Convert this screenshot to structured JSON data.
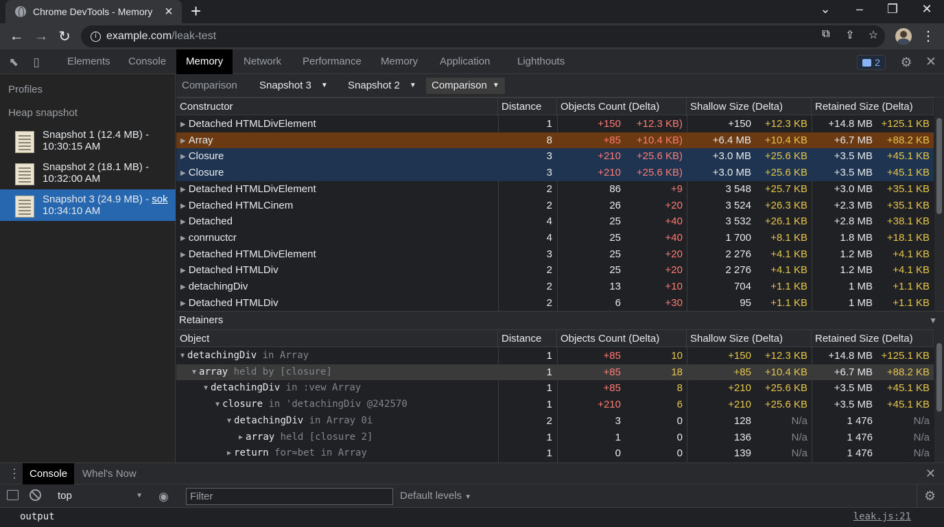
{
  "browser": {
    "tab_title": "Chrome DevTools - Memory",
    "url_host": "example.com",
    "url_path": "/leak-test"
  },
  "devtools": {
    "tabs": [
      "Elements",
      "Console",
      "Memory",
      "Network",
      "Performance",
      "Memory",
      "Application",
      "Lighthouts"
    ],
    "active_tab_index": 2,
    "messages_count": "2"
  },
  "sidebar": {
    "profiles_label": "Profiles",
    "section_label": "Heap snapshot",
    "snapshots": [
      {
        "line1": "Snapshot 1 (12.4 MB) -",
        "line2": "10:30:15 AM",
        "link": ""
      },
      {
        "line1": "Snapshot 2 (18.1 MB) -",
        "line2": "10:32:00 AM",
        "link": ""
      },
      {
        "line1": "Snapshot 3 (24.9 MB) - ",
        "line2": "10:34:10 AM",
        "link": "sok"
      }
    ],
    "selected_index": 2
  },
  "main_toolbar": {
    "view_label": "Comparison",
    "snapshot_a": "Snapshot 3",
    "snapshot_b": "Snapshot 2",
    "mode": "Comparison"
  },
  "constructors_table": {
    "headers": [
      "Constructor",
      "Distance",
      "Objects Count (Delta)",
      "Shallow Size (Delta)",
      "Retained Size (Delta)"
    ],
    "rows": [
      {
        "name": "Detached HTMLDivElement",
        "distance": "1",
        "count": "+150",
        "count_delta": "+12.3 KB)",
        "shallow": "+150",
        "shallow_delta": "+12.3 KB",
        "retained": "+14.8 MB",
        "retained_delta": "+125.1 KB",
        "style": "",
        "count_red": true
      },
      {
        "name": "Array",
        "distance": "8",
        "count": "+85",
        "count_delta": "+10.4 KB)",
        "shallow": "+6.4 MB",
        "shallow_delta": "+10.4 KB",
        "retained": "+6.7 MB",
        "retained_delta": "+88.2 KB",
        "style": "orange",
        "count_red": true
      },
      {
        "name": "Closure",
        "distance": "3",
        "count": "+210",
        "count_delta": "+25.6 KB)",
        "shallow": "+3.0 MB",
        "shallow_delta": "+25.6 KB",
        "retained": "+3.5 MB",
        "retained_delta": "+45.1 KB",
        "style": "blue",
        "count_red": true
      },
      {
        "name": "Closure",
        "distance": "3",
        "count": "+210",
        "count_delta": "+25.6 KB)",
        "shallow": "+3.0 MB",
        "shallow_delta": "+25.6 KB",
        "retained": "+3.5 MB",
        "retained_delta": "+45.1 KB",
        "style": "blue",
        "count_red": true
      },
      {
        "name": "Detached HTMLDivElement",
        "distance": "2",
        "count": "86",
        "count_delta": "+9",
        "shallow": "3 548",
        "shallow_delta": "+25.7 KB",
        "retained": "+3.0 MB",
        "retained_delta": "+35.1 KB",
        "style": "",
        "count_red": false
      },
      {
        "name": "Detached HTMLCinem",
        "distance": "2",
        "count": "26",
        "count_delta": "+20",
        "shallow": "3 524",
        "shallow_delta": "+26.3 KB",
        "retained": "+2.3 MB",
        "retained_delta": "+35.1 KB",
        "style": "",
        "count_red": false
      },
      {
        "name": "Detached",
        "distance": "4",
        "count": "25",
        "count_delta": "+40",
        "shallow": "3 532",
        "shallow_delta": "+26.1 KB",
        "retained": "+2.8 MB",
        "retained_delta": "+38.1 KB",
        "style": "",
        "count_red": false
      },
      {
        "name": "conrnuctcr",
        "distance": "4",
        "count": "25",
        "count_delta": "+40",
        "shallow": "1 700",
        "shallow_delta": "+8.1 KB",
        "retained": "1.8 MB",
        "retained_delta": "+18.1 KB",
        "style": "",
        "count_red": false
      },
      {
        "name": "Detached HTMLDivElement",
        "distance": "3",
        "count": "25",
        "count_delta": "+20",
        "shallow": "2 276",
        "shallow_delta": "+4.1 KB",
        "retained": "1.2 MB",
        "retained_delta": "+4.1 KB",
        "style": "",
        "count_red": false
      },
      {
        "name": "Detached HTMLDiv",
        "distance": "2",
        "count": "25",
        "count_delta": "+20",
        "shallow": "2 276",
        "shallow_delta": "+4.1 KB",
        "retained": "1.2 MB",
        "retained_delta": "+4.1 KB",
        "style": "",
        "count_red": false
      },
      {
        "name": "detachingDiv",
        "distance": "2",
        "count": "13",
        "count_delta": "+10",
        "shallow": "704",
        "shallow_delta": "+1.1 KB",
        "retained": "1 MB",
        "retained_delta": "+1.1 KB",
        "style": "",
        "count_red": false
      },
      {
        "name": "Detached HTMLDiv",
        "distance": "2",
        "count": "6",
        "count_delta": "+30",
        "shallow": "95",
        "shallow_delta": "+1.1 KB",
        "retained": "1 MB",
        "retained_delta": "+1.1 KB",
        "style": "",
        "count_red": false
      }
    ]
  },
  "retainers": {
    "title": "Retainers",
    "headers": [
      "Object",
      "Distance",
      "Objects Count (Delta)",
      "Shallow Size (Delta)",
      "Retained Size (Delta)"
    ],
    "rows": [
      {
        "depth": 0,
        "expanded": true,
        "name": "detachingDiv",
        "suffix": " in Array",
        "distance": "1",
        "count": "+85",
        "count_delta": "10",
        "shallow": "+150",
        "shallow_delta": "+12.3 KB",
        "retained": "+14.8 MB",
        "retained_delta": "+125.1 KB",
        "style": "",
        "na": false
      },
      {
        "depth": 1,
        "expanded": true,
        "name": "array",
        "suffix": " held by [closure]",
        "distance": "1",
        "count": "+85",
        "count_delta": "18",
        "shallow": "+85",
        "shallow_delta": "+10.4 KB",
        "retained": "+6.7 MB",
        "retained_delta": "+88.2 KB",
        "style": "grey",
        "na": false
      },
      {
        "depth": 2,
        "expanded": true,
        "name": "detachingDiv",
        "suffix": " in :vew Array",
        "distance": "1",
        "count": "+85",
        "count_delta": "8",
        "shallow": "+210",
        "shallow_delta": "+25.6 KB",
        "retained": "+3.5 MB",
        "retained_delta": "+45.1 KB",
        "style": "",
        "na": false
      },
      {
        "depth": 3,
        "expanded": true,
        "name": "closure",
        "suffix": " in 'detachingDiv @242570",
        "distance": "1",
        "count": "+210",
        "count_delta": "6",
        "shallow": "+210",
        "shallow_delta": "+25.6 KB",
        "retained": "+3.5 MB",
        "retained_delta": "+45.1 KB",
        "style": "",
        "na": false
      },
      {
        "depth": 4,
        "expanded": true,
        "name": "detachingDiv",
        "suffix": " in Array 0i",
        "distance": "2",
        "count": "3",
        "count_delta": "0",
        "shallow": "128",
        "shallow_delta": "N/a",
        "retained": "1 476",
        "retained_delta": "N/a",
        "style": "",
        "na": true
      },
      {
        "depth": 5,
        "expanded": false,
        "name": "array",
        "suffix": " held [closure 2]",
        "distance": "1",
        "count": "1",
        "count_delta": "0",
        "shallow": "136",
        "shallow_delta": "N/a",
        "retained": "1 476",
        "retained_delta": "N/a",
        "style": "",
        "na": true
      },
      {
        "depth": 4,
        "expanded": false,
        "name": "return",
        "suffix": " for≈bet in Array",
        "distance": "1",
        "count": "0",
        "count_delta": "0",
        "shallow": "139",
        "shallow_delta": "N/a",
        "retained": "1 476",
        "retained_delta": "N/a",
        "style": "",
        "na": true
      }
    ]
  },
  "drawer": {
    "tabs": [
      "Console",
      "Whel's Now"
    ],
    "context": "top",
    "filter_placeholder": "Filter",
    "levels": "Default levels",
    "output": "output",
    "source": "leak.js:21"
  },
  "colors": {
    "accent_selected": "#2667b0",
    "delta_red": "#ff7b72",
    "delta_yellow": "#e6c64c",
    "row_orange": "#6b3a12",
    "row_blue": "#1e3450"
  }
}
